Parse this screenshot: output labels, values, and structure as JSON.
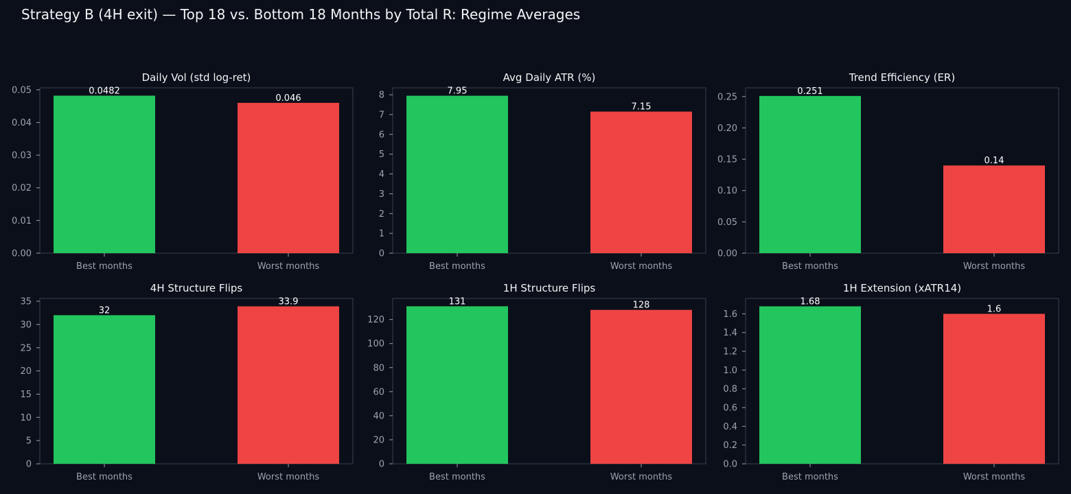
{
  "figure": {
    "title": "Strategy B (4H exit) — Top 18 vs. Bottom 18 Months by Total R: Regime Averages",
    "colors": {
      "background": "#0b0f19",
      "best": "#22c55e",
      "worst": "#ef4444",
      "axis": "#374151",
      "tick_text": "#9ca3af",
      "title_text": "#f3f4f6"
    }
  },
  "chart_data": [
    {
      "type": "bar",
      "title": "Daily Vol (std log-ret)",
      "categories": [
        "Best months",
        "Worst months"
      ],
      "values": [
        0.0482,
        0.046
      ],
      "value_labels": [
        "0.0482",
        "0.046"
      ],
      "ylim": [
        0,
        0.0506
      ],
      "yticks": [
        0,
        0.01,
        0.02,
        0.03,
        0.04,
        0.05
      ],
      "ytick_labels": [
        "0.00",
        "0.01",
        "0.02",
        "0.03",
        "0.04",
        "0.05"
      ],
      "grid": false
    },
    {
      "type": "bar",
      "title": "Avg Daily ATR (%)",
      "categories": [
        "Best months",
        "Worst months"
      ],
      "values": [
        7.95,
        7.15
      ],
      "value_labels": [
        "7.95",
        "7.15"
      ],
      "ylim": [
        0,
        8.35
      ],
      "yticks": [
        0,
        1,
        2,
        3,
        4,
        5,
        6,
        7,
        8
      ],
      "ytick_labels": [
        "0",
        "1",
        "2",
        "3",
        "4",
        "5",
        "6",
        "7",
        "8"
      ],
      "grid": false
    },
    {
      "type": "bar",
      "title": "Trend Efficiency (ER)",
      "categories": [
        "Best months",
        "Worst months"
      ],
      "values": [
        0.251,
        0.14
      ],
      "value_labels": [
        "0.251",
        "0.14"
      ],
      "ylim": [
        0,
        0.264
      ],
      "yticks": [
        0,
        0.05,
        0.1,
        0.15,
        0.2,
        0.25
      ],
      "ytick_labels": [
        "0.00",
        "0.05",
        "0.10",
        "0.15",
        "0.20",
        "0.25"
      ],
      "grid": false
    },
    {
      "type": "bar",
      "title": "4H Structure Flips",
      "categories": [
        "Best months",
        "Worst months"
      ],
      "values": [
        32,
        33.9
      ],
      "value_labels": [
        "32",
        "33.9"
      ],
      "ylim": [
        0,
        35.6
      ],
      "yticks": [
        0,
        5,
        10,
        15,
        20,
        25,
        30,
        35
      ],
      "ytick_labels": [
        "0",
        "5",
        "10",
        "15",
        "20",
        "25",
        "30",
        "35"
      ],
      "grid": false
    },
    {
      "type": "bar",
      "title": "1H Structure Flips",
      "categories": [
        "Best months",
        "Worst months"
      ],
      "values": [
        131,
        128
      ],
      "value_labels": [
        "131",
        "128"
      ],
      "ylim": [
        0,
        137.5
      ],
      "yticks": [
        0,
        20,
        40,
        60,
        80,
        100,
        120
      ],
      "ytick_labels": [
        "0",
        "20",
        "40",
        "60",
        "80",
        "100",
        "120"
      ],
      "grid": false
    },
    {
      "type": "bar",
      "title": "1H Extension (xATR14)",
      "categories": [
        "Best months",
        "Worst months"
      ],
      "values": [
        1.68,
        1.6
      ],
      "value_labels": [
        "1.68",
        "1.6"
      ],
      "ylim": [
        0,
        1.764
      ],
      "yticks": [
        0,
        0.2,
        0.4,
        0.6,
        0.8,
        1.0,
        1.2,
        1.4,
        1.6
      ],
      "ytick_labels": [
        "0.0",
        "0.2",
        "0.4",
        "0.6",
        "0.8",
        "1.0",
        "1.2",
        "1.4",
        "1.6"
      ],
      "grid": false
    }
  ]
}
